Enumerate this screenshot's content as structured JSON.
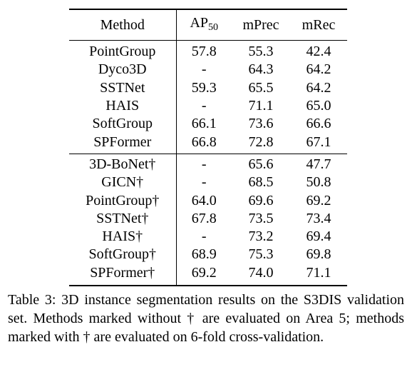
{
  "table": {
    "header": {
      "method": "Method",
      "ap_main": "AP",
      "ap_sub": "50",
      "mprec": "mPrec",
      "mrec": "mRec"
    },
    "group_area5": [
      {
        "method": "PointGroup",
        "ap50": "57.8",
        "mprec": "55.3",
        "mrec": "42.4"
      },
      {
        "method": "Dyco3D",
        "ap50": "-",
        "mprec": "64.3",
        "mrec": "64.2"
      },
      {
        "method": "SSTNet",
        "ap50": "59.3",
        "mprec": "65.5",
        "mrec": "64.2"
      },
      {
        "method": "HAIS",
        "ap50": "-",
        "mprec": "71.1",
        "mrec": "65.0"
      },
      {
        "method": "SoftGroup",
        "ap50": "66.1",
        "mprec": "73.6",
        "mrec": "66.6"
      },
      {
        "method": "SPFormer",
        "ap50": "66.8",
        "mprec": "72.8",
        "mrec": "67.1"
      }
    ],
    "group_6fold": [
      {
        "method": "3D-BoNet†",
        "ap50": "-",
        "mprec": "65.6",
        "mrec": "47.7"
      },
      {
        "method": "GICN†",
        "ap50": "-",
        "mprec": "68.5",
        "mrec": "50.8"
      },
      {
        "method": "PointGroup†",
        "ap50": "64.0",
        "mprec": "69.6",
        "mrec": "69.2"
      },
      {
        "method": "SSTNet†",
        "ap50": "67.8",
        "mprec": "73.5",
        "mrec": "73.4"
      },
      {
        "method": "HAIS†",
        "ap50": "-",
        "mprec": "73.2",
        "mrec": "69.4"
      },
      {
        "method": "SoftGroup†",
        "ap50": "68.9",
        "mprec": "75.3",
        "mrec": "69.8"
      },
      {
        "method": "SPFormer†",
        "ap50": "69.2",
        "mprec": "74.0",
        "mrec": "71.1"
      }
    ]
  },
  "caption": "Table 3: 3D instance segmentation results on the S3DIS validation set. Methods marked without † are evaluated on Area 5; methods marked with † are evaluated on 6-fold cross-validation."
}
